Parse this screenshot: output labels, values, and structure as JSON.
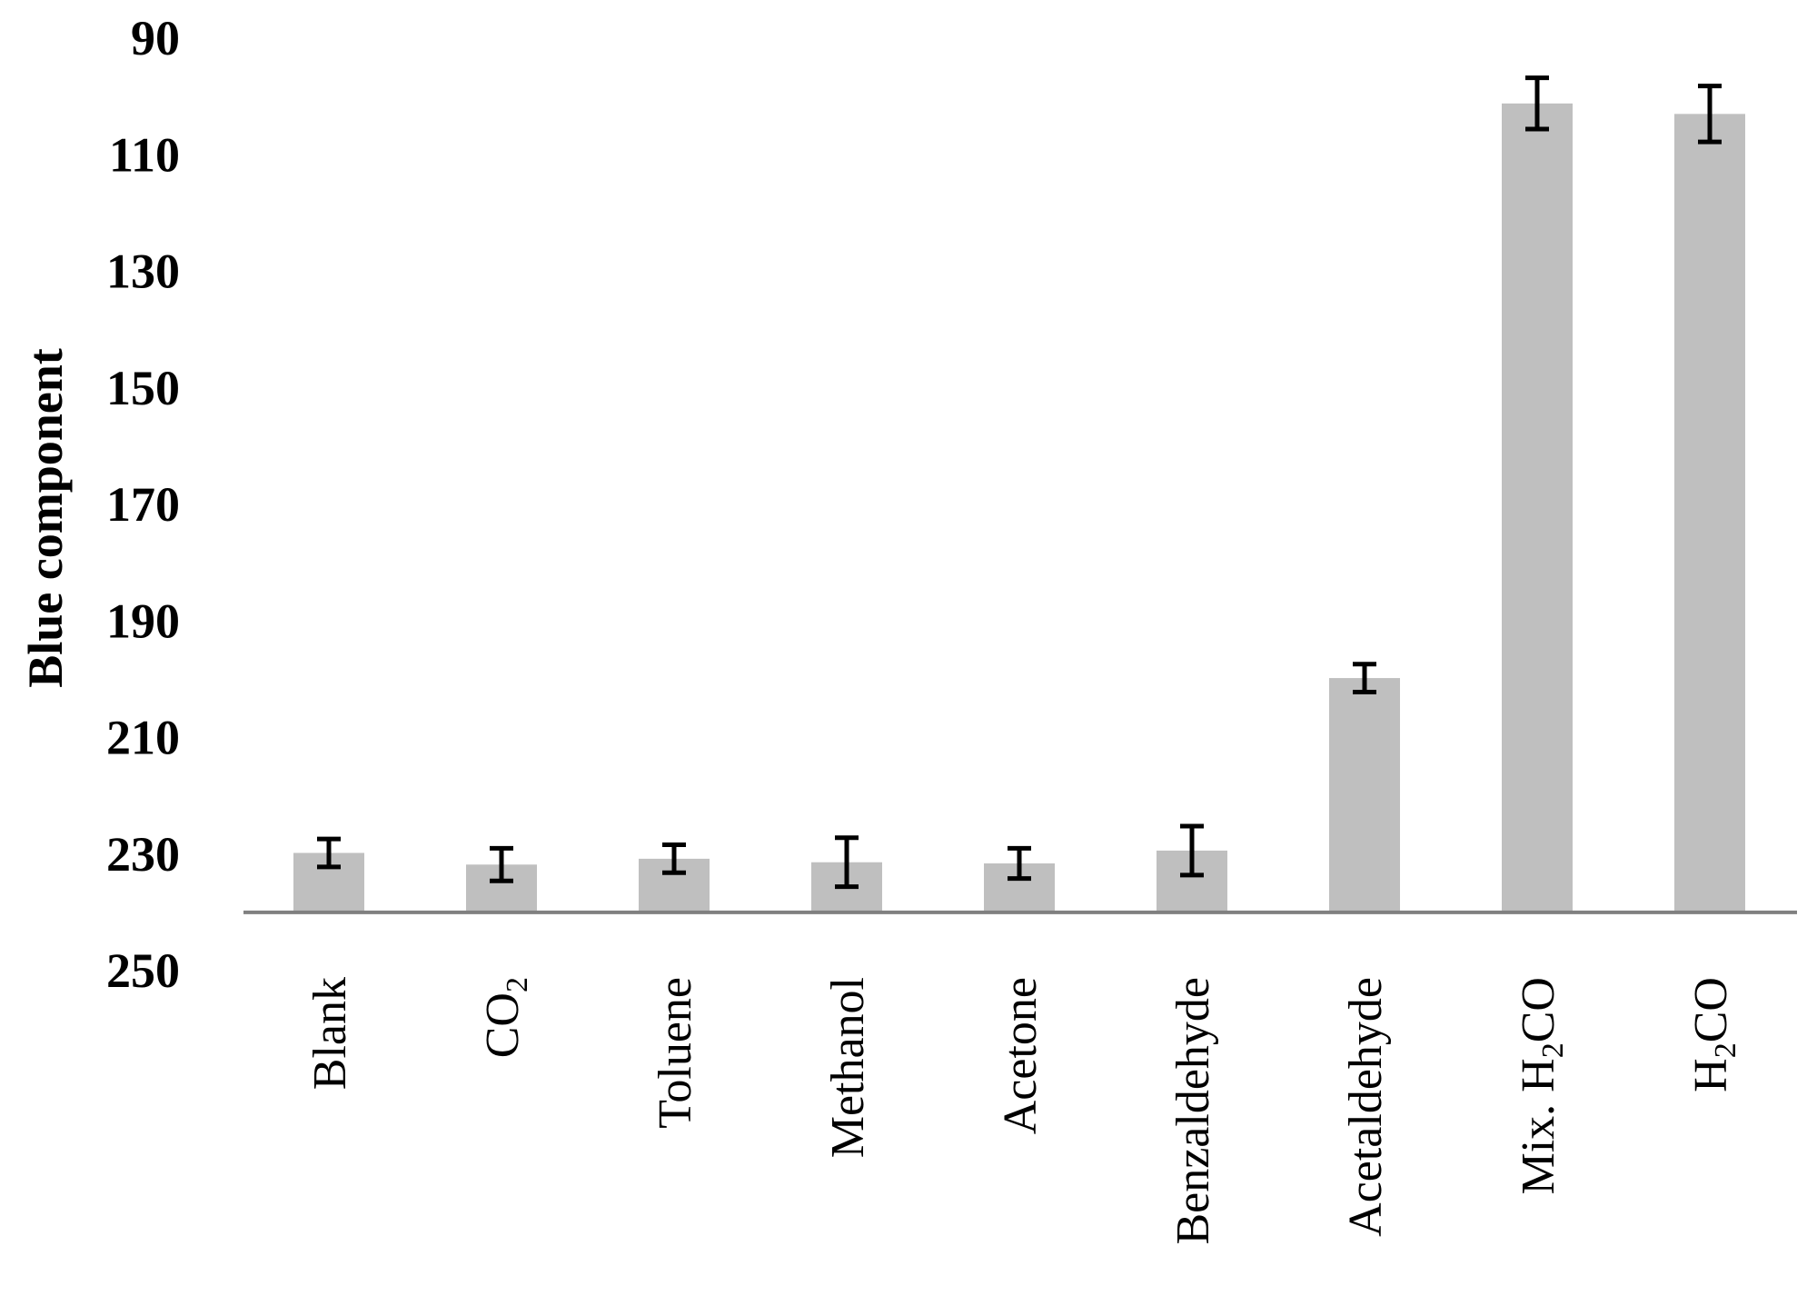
{
  "chart_data": {
    "type": "bar",
    "title": "",
    "xlabel": "",
    "ylabel": "Blue component",
    "y_axis_inverted": true,
    "ylim": [
      90,
      250
    ],
    "yticks": [
      90,
      110,
      130,
      150,
      170,
      190,
      210,
      230,
      250
    ],
    "ytick_labels": [
      "90",
      "110",
      "130",
      "150",
      "170",
      "190",
      "210",
      "230",
      "250"
    ],
    "categories": [
      "Blank",
      "CO2",
      "Toluene",
      "Methanol",
      "Acetone",
      "Benzaldehyde",
      "Acetaldehyde",
      "Mix. H2CO",
      "H2CO"
    ],
    "category_labels": [
      [
        {
          "t": "Blank"
        }
      ],
      [
        {
          "t": "CO"
        },
        {
          "t": "2",
          "sub": true
        }
      ],
      [
        {
          "t": "Toluene"
        }
      ],
      [
        {
          "t": "Methanol"
        }
      ],
      [
        {
          "t": "Acetone"
        }
      ],
      [
        {
          "t": "Benzaldehyde"
        }
      ],
      [
        {
          "t": "Acetaldehyde"
        }
      ],
      [
        {
          "t": "Mix. H"
        },
        {
          "t": "2",
          "sub": true
        },
        {
          "t": "CO"
        }
      ],
      [
        {
          "t": "H"
        },
        {
          "t": "2",
          "sub": true
        },
        {
          "t": "CO"
        }
      ]
    ],
    "baseline": 240,
    "values": [
      229.8,
      231.8,
      230.8,
      231.4,
      231.6,
      229.4,
      199.8,
      101.2,
      103.0
    ],
    "errors": [
      2.4,
      2.8,
      2.4,
      4.2,
      2.6,
      4.2,
      2.4,
      4.4,
      4.8
    ],
    "grid": false,
    "legend": "none",
    "colors": {
      "bar": "#bfbfbf",
      "error_bar": "#000000",
      "axis": "#808080",
      "text": "#000000"
    }
  }
}
